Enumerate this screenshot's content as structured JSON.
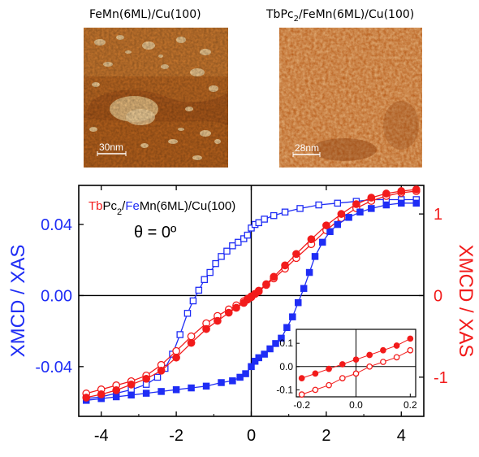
{
  "figure": {
    "panel_left_title": "FeMn(6ML)/Cu(100)",
    "panel_right_title_parts": [
      "TbPc",
      "2",
      "/FeMn(6ML)/Cu(100)"
    ],
    "panel_left_scalebar": "30nm",
    "panel_right_scalebar": "28nm"
  },
  "colors": {
    "blue": "#1f2df5",
    "red": "#f21b1b",
    "stm_base": "#c46a1c",
    "stm_light": "#f2c890",
    "stm_dark": "#8a4210"
  },
  "chart_data": {
    "type": "scatter",
    "legend_parts": [
      {
        "text": "Tb",
        "color": "red"
      },
      {
        "text": "Pc",
        "color": "black"
      },
      {
        "text": "2",
        "color": "black",
        "sub": true
      },
      {
        "text": "/",
        "color": "black"
      },
      {
        "text": "Fe",
        "color": "blue"
      },
      {
        "text": "Mn(6ML)/Cu(100)",
        "color": "black"
      }
    ],
    "annotation": "θ = 0º",
    "ylabel_left": "XMCD / XAS",
    "ylabel_right": "XMCD / XAS",
    "xlim": [
      -4.6,
      4.6
    ],
    "ylim_left": [
      -0.068,
      0.062
    ],
    "ylim_right": [
      -1.48,
      1.35
    ],
    "xticks": [
      "-4",
      "-2",
      "0",
      "2",
      "4"
    ],
    "yticks_left": [
      "-0.04",
      "0.00",
      "0.04"
    ],
    "yticks_right": [
      "-1",
      "0",
      "1"
    ],
    "series": [
      {
        "axis": "left",
        "color": "blue",
        "marker": "square-open",
        "x": [
          -4.4,
          -4.0,
          -3.6,
          -3.2,
          -2.8,
          -2.5,
          -2.3,
          -2.1,
          -1.9,
          -1.7,
          -1.55,
          -1.4,
          -1.25,
          -1.1,
          -0.95,
          -0.8,
          -0.65,
          -0.5,
          -0.35,
          -0.2,
          -0.1,
          0.0,
          0.1,
          0.2,
          0.35,
          0.6,
          0.9,
          1.3,
          1.8,
          2.3,
          2.8,
          3.2,
          3.6,
          4.0,
          4.4
        ],
        "y": [
          -0.058,
          -0.057,
          -0.055,
          -0.053,
          -0.05,
          -0.046,
          -0.041,
          -0.033,
          -0.022,
          -0.01,
          -0.003,
          0.003,
          0.009,
          0.013,
          0.018,
          0.022,
          0.025,
          0.028,
          0.03,
          0.032,
          0.034,
          0.038,
          0.04,
          0.041,
          0.043,
          0.045,
          0.047,
          0.049,
          0.051,
          0.052,
          0.053,
          0.054,
          0.054,
          0.054,
          0.054
        ]
      },
      {
        "axis": "left",
        "color": "blue",
        "marker": "square-filled",
        "x": [
          -4.4,
          -4.0,
          -3.6,
          -3.2,
          -2.8,
          -2.4,
          -2.0,
          -1.6,
          -1.2,
          -0.8,
          -0.5,
          -0.3,
          -0.15,
          0.0,
          0.1,
          0.2,
          0.35,
          0.5,
          0.65,
          0.8,
          0.95,
          1.1,
          1.25,
          1.4,
          1.55,
          1.7,
          1.9,
          2.1,
          2.3,
          2.6,
          2.9,
          3.2,
          3.6,
          4.0,
          4.4
        ],
        "y": [
          -0.059,
          -0.058,
          -0.057,
          -0.056,
          -0.055,
          -0.054,
          -0.053,
          -0.052,
          -0.051,
          -0.049,
          -0.048,
          -0.046,
          -0.044,
          -0.04,
          -0.037,
          -0.035,
          -0.033,
          -0.03,
          -0.027,
          -0.024,
          -0.018,
          -0.012,
          -0.004,
          0.004,
          0.013,
          0.022,
          0.03,
          0.036,
          0.04,
          0.044,
          0.047,
          0.049,
          0.051,
          0.052,
          0.052
        ]
      },
      {
        "axis": "right",
        "color": "red",
        "marker": "circle-open",
        "x": [
          -4.4,
          -4.0,
          -3.6,
          -3.2,
          -2.8,
          -2.4,
          -2.0,
          -1.6,
          -1.2,
          -0.9,
          -0.6,
          -0.4,
          -0.2,
          -0.1,
          0.0,
          0.1,
          0.2,
          0.4,
          0.6,
          0.9,
          1.2,
          1.6,
          2.0,
          2.4,
          2.8,
          3.2,
          3.6,
          4.0,
          4.4
        ],
        "y": [
          -1.2,
          -1.15,
          -1.1,
          -1.05,
          -0.98,
          -0.85,
          -0.68,
          -0.5,
          -0.34,
          -0.25,
          -0.17,
          -0.12,
          -0.07,
          -0.04,
          -0.01,
          0.02,
          0.05,
          0.13,
          0.21,
          0.33,
          0.46,
          0.63,
          0.8,
          0.95,
          1.07,
          1.16,
          1.22,
          1.26,
          1.28
        ]
      },
      {
        "axis": "right",
        "color": "red",
        "marker": "circle-filled",
        "x": [
          -4.4,
          -4.0,
          -3.6,
          -3.2,
          -2.8,
          -2.4,
          -2.0,
          -1.6,
          -1.2,
          -0.9,
          -0.6,
          -0.4,
          -0.2,
          -0.1,
          0.0,
          0.1,
          0.2,
          0.4,
          0.6,
          0.9,
          1.2,
          1.6,
          2.0,
          2.4,
          2.8,
          3.2,
          3.6,
          4.0,
          4.4
        ],
        "y": [
          -1.25,
          -1.21,
          -1.16,
          -1.09,
          -1.02,
          -0.92,
          -0.76,
          -0.58,
          -0.41,
          -0.31,
          -0.21,
          -0.15,
          -0.09,
          -0.05,
          -0.02,
          0.02,
          0.06,
          0.14,
          0.23,
          0.37,
          0.51,
          0.69,
          0.86,
          1.0,
          1.12,
          1.2,
          1.25,
          1.28,
          1.3
        ]
      }
    ],
    "inset": {
      "xlim": [
        -0.22,
        0.22
      ],
      "ylim": [
        -0.13,
        0.16
      ],
      "xticks": [
        "-0.2",
        "0.0",
        "0.2"
      ],
      "yticks": [
        "0.1",
        "0.0",
        "-0.1"
      ],
      "series": [
        {
          "color": "red",
          "marker": "circle-filled",
          "x": [
            -0.2,
            -0.15,
            -0.1,
            -0.05,
            0.0,
            0.05,
            0.1,
            0.15,
            0.2
          ],
          "y": [
            -0.05,
            -0.03,
            -0.01,
            0.01,
            0.03,
            0.05,
            0.07,
            0.09,
            0.12
          ]
        },
        {
          "color": "red",
          "marker": "circle-open",
          "x": [
            -0.2,
            -0.15,
            -0.1,
            -0.05,
            0.0,
            0.05,
            0.1,
            0.15,
            0.2
          ],
          "y": [
            -0.12,
            -0.1,
            -0.08,
            -0.05,
            -0.03,
            0.0,
            0.02,
            0.04,
            0.07
          ]
        }
      ]
    }
  }
}
